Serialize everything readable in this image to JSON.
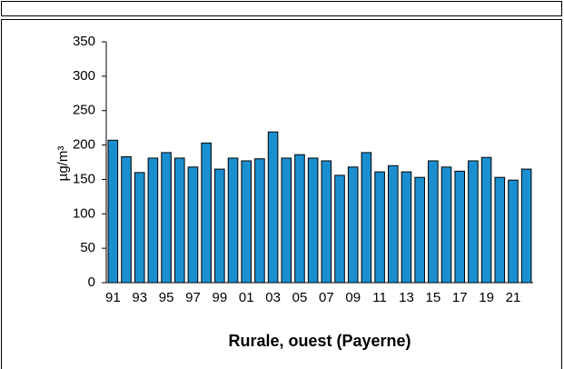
{
  "chart_data": {
    "type": "bar",
    "title": "Rurale, ouest (Payerne)",
    "y_label": "µg/m³",
    "categories": [
      "91",
      null,
      "93",
      null,
      "95",
      null,
      "97",
      null,
      "99",
      null,
      "01",
      null,
      "03",
      null,
      "05",
      null,
      "07",
      null,
      "09",
      null,
      "11",
      null,
      "13",
      null,
      "15",
      null,
      "17",
      null,
      "19",
      null,
      "21",
      null
    ],
    "values": [
      207,
      183,
      160,
      181,
      189,
      181,
      168,
      203,
      165,
      181,
      177,
      180,
      219,
      181,
      186,
      181,
      177,
      156,
      168,
      189,
      161,
      170,
      161,
      153,
      177,
      168,
      162,
      177,
      182,
      153,
      149,
      165
    ],
    "color": "#1a8fd0",
    "ylim": [
      0,
      350
    ],
    "yticks": [
      0,
      50,
      100,
      150,
      200,
      250,
      300,
      350
    ]
  }
}
